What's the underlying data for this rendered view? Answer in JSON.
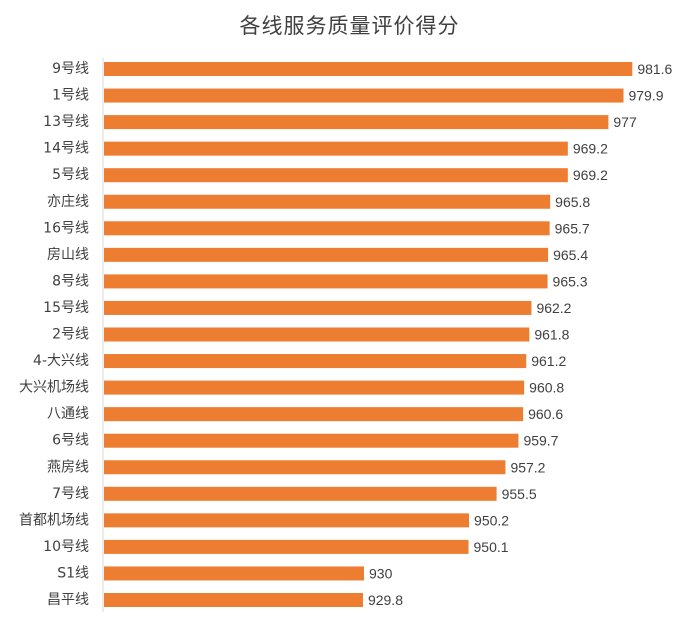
{
  "chart_data": {
    "type": "bar",
    "orientation": "horizontal",
    "title": "各线服务质量评价得分",
    "categories": [
      "9号线",
      "1号线",
      "13号线",
      "14号线",
      "5号线",
      "亦庄线",
      "16号线",
      "房山线",
      "8号线",
      "15号线",
      "2号线",
      "4-大兴线",
      "大兴机场线",
      "八通线",
      "6号线",
      "燕房线",
      "7号线",
      "首都机场线",
      "10号线",
      "S1线",
      "昌平线"
    ],
    "values": [
      981.6,
      979.9,
      977,
      969.2,
      969.2,
      965.8,
      965.7,
      965.4,
      965.3,
      962.2,
      961.8,
      961.2,
      960.8,
      960.6,
      959.7,
      957.2,
      955.5,
      950.2,
      950.1,
      930,
      929.8
    ],
    "value_labels": [
      "981.6",
      "979.9",
      "977",
      "969.2",
      "969.2",
      "965.8",
      "965.7",
      "965.4",
      "965.3",
      "962.2",
      "961.8",
      "961.2",
      "960.8",
      "960.6",
      "959.7",
      "957.2",
      "955.5",
      "950.2",
      "950.1",
      "930",
      "929.8"
    ],
    "xlim": [
      880,
      985
    ],
    "grid": false,
    "legend": "none",
    "bar_color": "#ED7D31"
  }
}
